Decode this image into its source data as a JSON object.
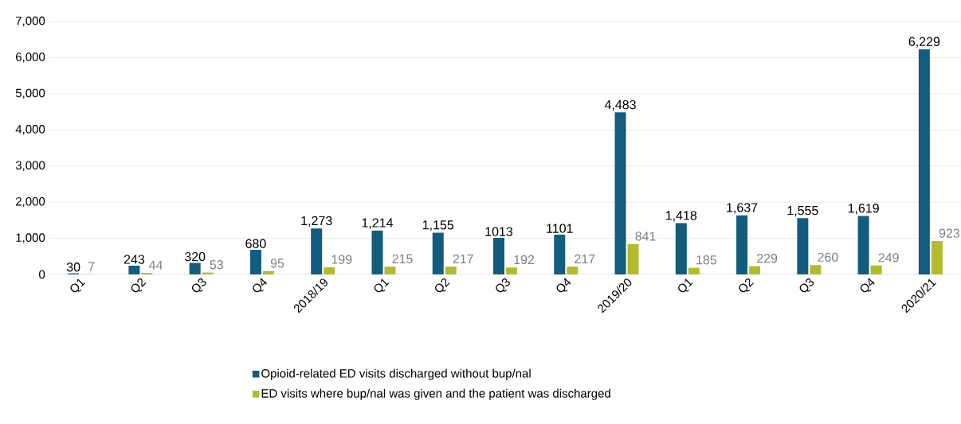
{
  "chart_data": {
    "type": "bar",
    "categories": [
      "Q1",
      "Q2",
      "Q3",
      "Q4",
      "2018/19",
      "Q1",
      "Q2",
      "Q3",
      "Q4",
      "2019/20",
      "Q1",
      "Q2",
      "Q3",
      "Q4",
      "2020/21"
    ],
    "series": [
      {
        "name": "Opioid-related ED visits discharged without bup/nal",
        "color": "#125c7e",
        "values": [
          30,
          243,
          320,
          680,
          1273,
          1214,
          1155,
          1013,
          1101,
          4483,
          1418,
          1637,
          1555,
          1619,
          6229
        ],
        "value_labels": [
          "30",
          "243",
          "320",
          "680",
          "1,273",
          "1,214",
          "1,155",
          "1013",
          "1101",
          "4,483",
          "1,418",
          "1,637",
          "1,555",
          "1,619",
          "6,229"
        ]
      },
      {
        "name": "ED visits where bup/nal was given and the patient was discharged",
        "color": "#b3bb2c",
        "values": [
          7,
          44,
          53,
          95,
          199,
          215,
          217,
          192,
          217,
          841,
          185,
          229,
          260,
          249,
          923
        ],
        "value_labels": [
          "7",
          "44",
          "53",
          "95",
          "199",
          "215",
          "217",
          "192",
          "217",
          "841",
          "185",
          "229",
          "260",
          "249",
          "923"
        ]
      }
    ],
    "ylim": [
      0,
      7000
    ],
    "yticks": [
      {
        "value": 0,
        "label": "0"
      },
      {
        "value": 1000,
        "label": "1,000"
      },
      {
        "value": 2000,
        "label": "2,000"
      },
      {
        "value": 3000,
        "label": "3,000"
      },
      {
        "value": 4000,
        "label": "4,000"
      },
      {
        "value": 5000,
        "label": "5,000"
      },
      {
        "value": 6000,
        "label": "6,000"
      },
      {
        "value": 7000,
        "label": "7,000"
      }
    ],
    "grid": "y",
    "legend": "bottom"
  }
}
